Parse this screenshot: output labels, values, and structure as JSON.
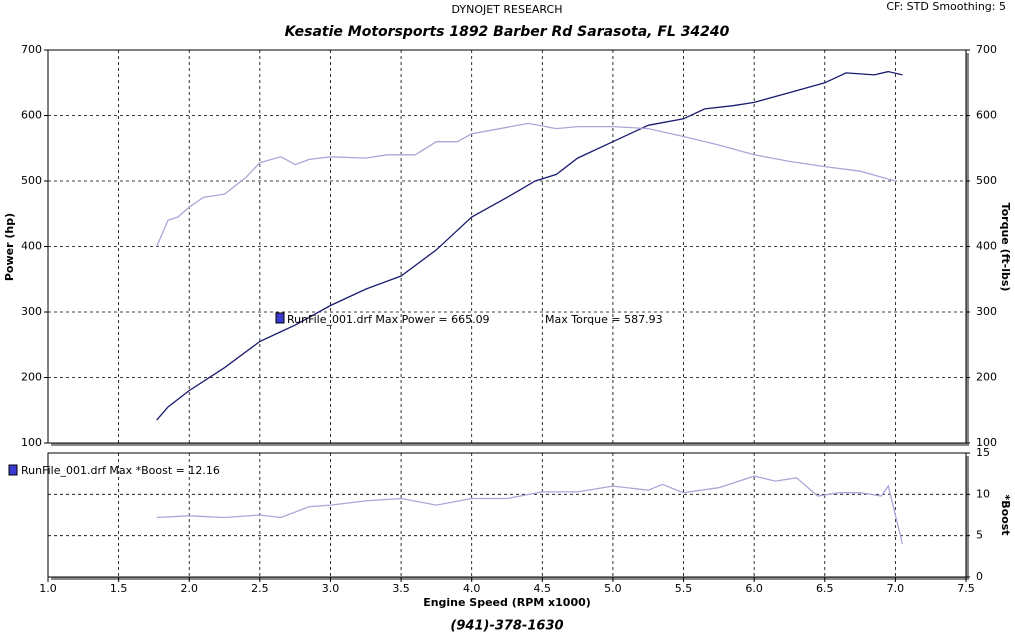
{
  "header": {
    "brand": "DYNOJET RESEARCH",
    "settings": "CF: STD  Smoothing: 5"
  },
  "footer": "(941)-378-1630",
  "chart_data": [
    {
      "type": "line",
      "title": "Kesatie Motorsports 1892 Barber Rd Sarasota, FL 34240",
      "ylabel": "Power (hp)",
      "y2label": "Torque (ft-lbs)",
      "ylim": [
        100,
        700
      ],
      "yticks": [
        100,
        200,
        300,
        400,
        500,
        600,
        700
      ],
      "y2lim": [
        100,
        700
      ],
      "y2ticks": [
        100,
        200,
        300,
        400,
        500,
        600,
        700
      ],
      "grid": true,
      "annotations": [
        "RunFile_001.drf Max Power = 665.09",
        "Max Torque = 587.93"
      ],
      "legend_color": "#3a3ad0",
      "series": [
        {
          "color": "#1a1a6e",
          "axis": "y",
          "x": [
            1.77,
            1.85,
            2.0,
            2.25,
            2.5,
            2.65,
            2.75,
            3.0,
            3.25,
            3.5,
            3.75,
            4.0,
            4.25,
            4.45,
            4.6,
            4.75,
            5.0,
            5.25,
            5.5,
            5.65,
            5.85,
            6.0,
            6.25,
            6.5,
            6.65,
            6.85,
            6.95,
            7.05
          ],
          "values": [
            135,
            155,
            180,
            215,
            255,
            270,
            280,
            310,
            335,
            355,
            395,
            445,
            475,
            500,
            510,
            535,
            560,
            585,
            595,
            610,
            615,
            620,
            635,
            650,
            665,
            662,
            667,
            662
          ]
        },
        {
          "color": "#a8a8d8",
          "axis": "y2",
          "x": [
            1.77,
            1.85,
            1.92,
            2.0,
            2.1,
            2.25,
            2.4,
            2.5,
            2.65,
            2.75,
            2.85,
            3.0,
            3.25,
            3.4,
            3.6,
            3.75,
            3.9,
            4.0,
            4.25,
            4.4,
            4.6,
            4.75,
            5.0,
            5.25,
            5.5,
            5.75,
            6.0,
            6.25,
            6.5,
            6.75,
            7.0
          ],
          "values": [
            400,
            440,
            445,
            460,
            475,
            480,
            505,
            528,
            537,
            525,
            533,
            537,
            535,
            540,
            540,
            560,
            560,
            572,
            582,
            588,
            580,
            583,
            583,
            580,
            568,
            555,
            540,
            530,
            522,
            515,
            500
          ]
        }
      ]
    },
    {
      "type": "line",
      "y2label": "*Boost",
      "xlabel": "Engine Speed (RPM x1000)",
      "xlim": [
        1.0,
        7.5
      ],
      "xticks": [
        {
          "value": 1.0,
          "label": "1.0"
        },
        1.5,
        {
          "value": 2.0,
          "label": "2.0"
        },
        2.5,
        {
          "value": 3.0,
          "label": "3.0"
        },
        3.5,
        {
          "value": 4.0,
          "label": "4.0"
        },
        4.5,
        {
          "value": 5.0,
          "label": "5.0"
        },
        5.5,
        {
          "value": 6.0,
          "label": "6.0"
        },
        6.5,
        {
          "value": 7.0,
          "label": "7.0"
        },
        7.5
      ],
      "y2lim": [
        0,
        15
      ],
      "y2ticks": [
        0,
        5,
        10,
        15
      ],
      "grid": true,
      "annotations": [
        "RunFile_001.drf Max *Boost = 12.16"
      ],
      "legend_color": "#3a3ad0",
      "series": [
        {
          "color": "#a8a8d8",
          "axis": "y2",
          "x": [
            1.77,
            2.0,
            2.25,
            2.5,
            2.65,
            2.85,
            3.0,
            3.25,
            3.5,
            3.75,
            4.0,
            4.25,
            4.5,
            4.75,
            5.0,
            5.25,
            5.35,
            5.5,
            5.75,
            6.0,
            6.15,
            6.3,
            6.45,
            6.6,
            6.75,
            6.9,
            6.95,
            7.05
          ],
          "values": [
            7.2,
            7.4,
            7.2,
            7.5,
            7.2,
            8.5,
            8.7,
            9.2,
            9.5,
            8.7,
            9.5,
            9.5,
            10.3,
            10.3,
            11,
            10.5,
            11.2,
            10.2,
            10.8,
            12.2,
            11.6,
            12,
            9.8,
            10.2,
            10.2,
            9.8,
            11,
            4
          ]
        }
      ]
    }
  ]
}
